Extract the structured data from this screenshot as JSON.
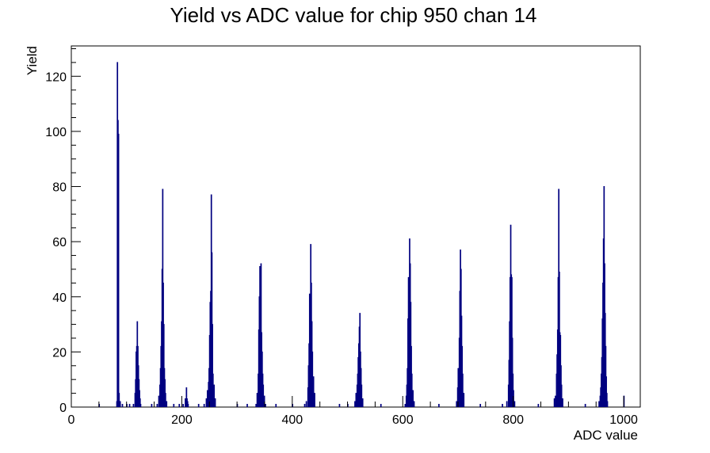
{
  "chart_data": {
    "type": "histogram",
    "title": "Yield vs ADC value for chip 950 chan 14",
    "xlabel": "ADC value",
    "ylabel": "Yield",
    "xlim": [
      0,
      1030
    ],
    "ylim": [
      0,
      131
    ],
    "x_ticks": [
      0,
      200,
      400,
      600,
      800,
      1000
    ],
    "y_ticks": [
      0,
      20,
      40,
      60,
      80,
      100,
      120
    ],
    "grid": false,
    "legend": "none",
    "line_color": "#000080",
    "bins": [
      [
        50,
        1
      ],
      [
        82,
        2
      ],
      [
        83,
        125
      ],
      [
        84,
        104
      ],
      [
        85,
        99
      ],
      [
        86,
        5
      ],
      [
        88,
        2
      ],
      [
        92,
        1
      ],
      [
        100,
        1
      ],
      [
        105,
        1
      ],
      [
        112,
        1
      ],
      [
        115,
        5
      ],
      [
        116,
        10
      ],
      [
        117,
        20
      ],
      [
        118,
        22
      ],
      [
        119,
        31
      ],
      [
        120,
        22
      ],
      [
        121,
        15
      ],
      [
        122,
        10
      ],
      [
        123,
        6
      ],
      [
        124,
        3
      ],
      [
        125,
        1
      ],
      [
        145,
        1
      ],
      [
        155,
        1
      ],
      [
        158,
        4
      ],
      [
        160,
        8
      ],
      [
        161,
        14
      ],
      [
        162,
        22
      ],
      [
        163,
        31
      ],
      [
        164,
        50
      ],
      [
        165,
        79
      ],
      [
        166,
        45
      ],
      [
        167,
        30
      ],
      [
        168,
        14
      ],
      [
        169,
        10
      ],
      [
        170,
        5
      ],
      [
        172,
        2
      ],
      [
        185,
        1
      ],
      [
        195,
        1
      ],
      [
        202,
        1
      ],
      [
        206,
        3
      ],
      [
        207,
        1
      ],
      [
        208,
        7
      ],
      [
        209,
        3
      ],
      [
        210,
        2
      ],
      [
        211,
        1
      ],
      [
        230,
        1
      ],
      [
        240,
        1
      ],
      [
        244,
        3
      ],
      [
        246,
        6
      ],
      [
        248,
        9
      ],
      [
        249,
        14
      ],
      [
        250,
        26
      ],
      [
        251,
        38
      ],
      [
        252,
        42
      ],
      [
        253,
        77
      ],
      [
        254,
        56
      ],
      [
        255,
        30
      ],
      [
        256,
        12
      ],
      [
        258,
        8
      ],
      [
        260,
        3
      ],
      [
        300,
        1
      ],
      [
        318,
        1
      ],
      [
        334,
        1
      ],
      [
        336,
        5
      ],
      [
        338,
        12
      ],
      [
        339,
        28
      ],
      [
        340,
        40
      ],
      [
        341,
        51
      ],
      [
        342,
        33
      ],
      [
        343,
        52
      ],
      [
        344,
        27
      ],
      [
        345,
        20
      ],
      [
        346,
        12
      ],
      [
        347,
        8
      ],
      [
        349,
        4
      ],
      [
        351,
        1
      ],
      [
        370,
        1
      ],
      [
        400,
        1
      ],
      [
        422,
        1
      ],
      [
        425,
        2
      ],
      [
        428,
        7
      ],
      [
        429,
        15
      ],
      [
        430,
        23
      ],
      [
        431,
        41
      ],
      [
        432,
        33
      ],
      [
        433,
        59
      ],
      [
        434,
        45
      ],
      [
        435,
        31
      ],
      [
        436,
        20
      ],
      [
        438,
        11
      ],
      [
        440,
        5
      ],
      [
        485,
        1
      ],
      [
        500,
        1
      ],
      [
        513,
        2
      ],
      [
        515,
        5
      ],
      [
        517,
        8
      ],
      [
        518,
        12
      ],
      [
        519,
        18
      ],
      [
        520,
        23
      ],
      [
        521,
        29
      ],
      [
        522,
        34
      ],
      [
        523,
        20
      ],
      [
        524,
        14
      ],
      [
        525,
        8
      ],
      [
        527,
        3
      ],
      [
        560,
        1
      ],
      [
        604,
        1
      ],
      [
        606,
        4
      ],
      [
        607,
        8
      ],
      [
        608,
        14
      ],
      [
        609,
        32
      ],
      [
        610,
        47
      ],
      [
        611,
        33
      ],
      [
        612,
        61
      ],
      [
        613,
        52
      ],
      [
        614,
        38
      ],
      [
        615,
        22
      ],
      [
        616,
        12
      ],
      [
        618,
        6
      ],
      [
        620,
        2
      ],
      [
        665,
        1
      ],
      [
        697,
        2
      ],
      [
        699,
        7
      ],
      [
        700,
        14
      ],
      [
        701,
        12
      ],
      [
        702,
        25
      ],
      [
        703,
        42
      ],
      [
        704,
        57
      ],
      [
        705,
        50
      ],
      [
        706,
        33
      ],
      [
        707,
        22
      ],
      [
        708,
        12
      ],
      [
        710,
        5
      ],
      [
        740,
        1
      ],
      [
        780,
        1
      ],
      [
        788,
        2
      ],
      [
        791,
        8
      ],
      [
        792,
        17
      ],
      [
        793,
        31
      ],
      [
        794,
        47
      ],
      [
        795,
        66
      ],
      [
        796,
        48
      ],
      [
        797,
        47
      ],
      [
        798,
        25
      ],
      [
        799,
        12
      ],
      [
        800,
        6
      ],
      [
        802,
        2
      ],
      [
        845,
        1
      ],
      [
        874,
        3
      ],
      [
        876,
        4
      ],
      [
        878,
        12
      ],
      [
        879,
        19
      ],
      [
        880,
        28
      ],
      [
        881,
        47
      ],
      [
        882,
        79
      ],
      [
        883,
        49
      ],
      [
        884,
        27
      ],
      [
        885,
        26
      ],
      [
        886,
        15
      ],
      [
        887,
        8
      ],
      [
        889,
        3
      ],
      [
        930,
        1
      ],
      [
        955,
        2
      ],
      [
        957,
        4
      ],
      [
        958,
        7
      ],
      [
        959,
        12
      ],
      [
        960,
        18
      ],
      [
        961,
        32
      ],
      [
        962,
        45
      ],
      [
        963,
        61
      ],
      [
        964,
        80
      ],
      [
        965,
        52
      ],
      [
        966,
        34
      ],
      [
        967,
        22
      ],
      [
        968,
        11
      ],
      [
        969,
        5
      ],
      [
        970,
        2
      ],
      [
        1000,
        4
      ]
    ]
  }
}
